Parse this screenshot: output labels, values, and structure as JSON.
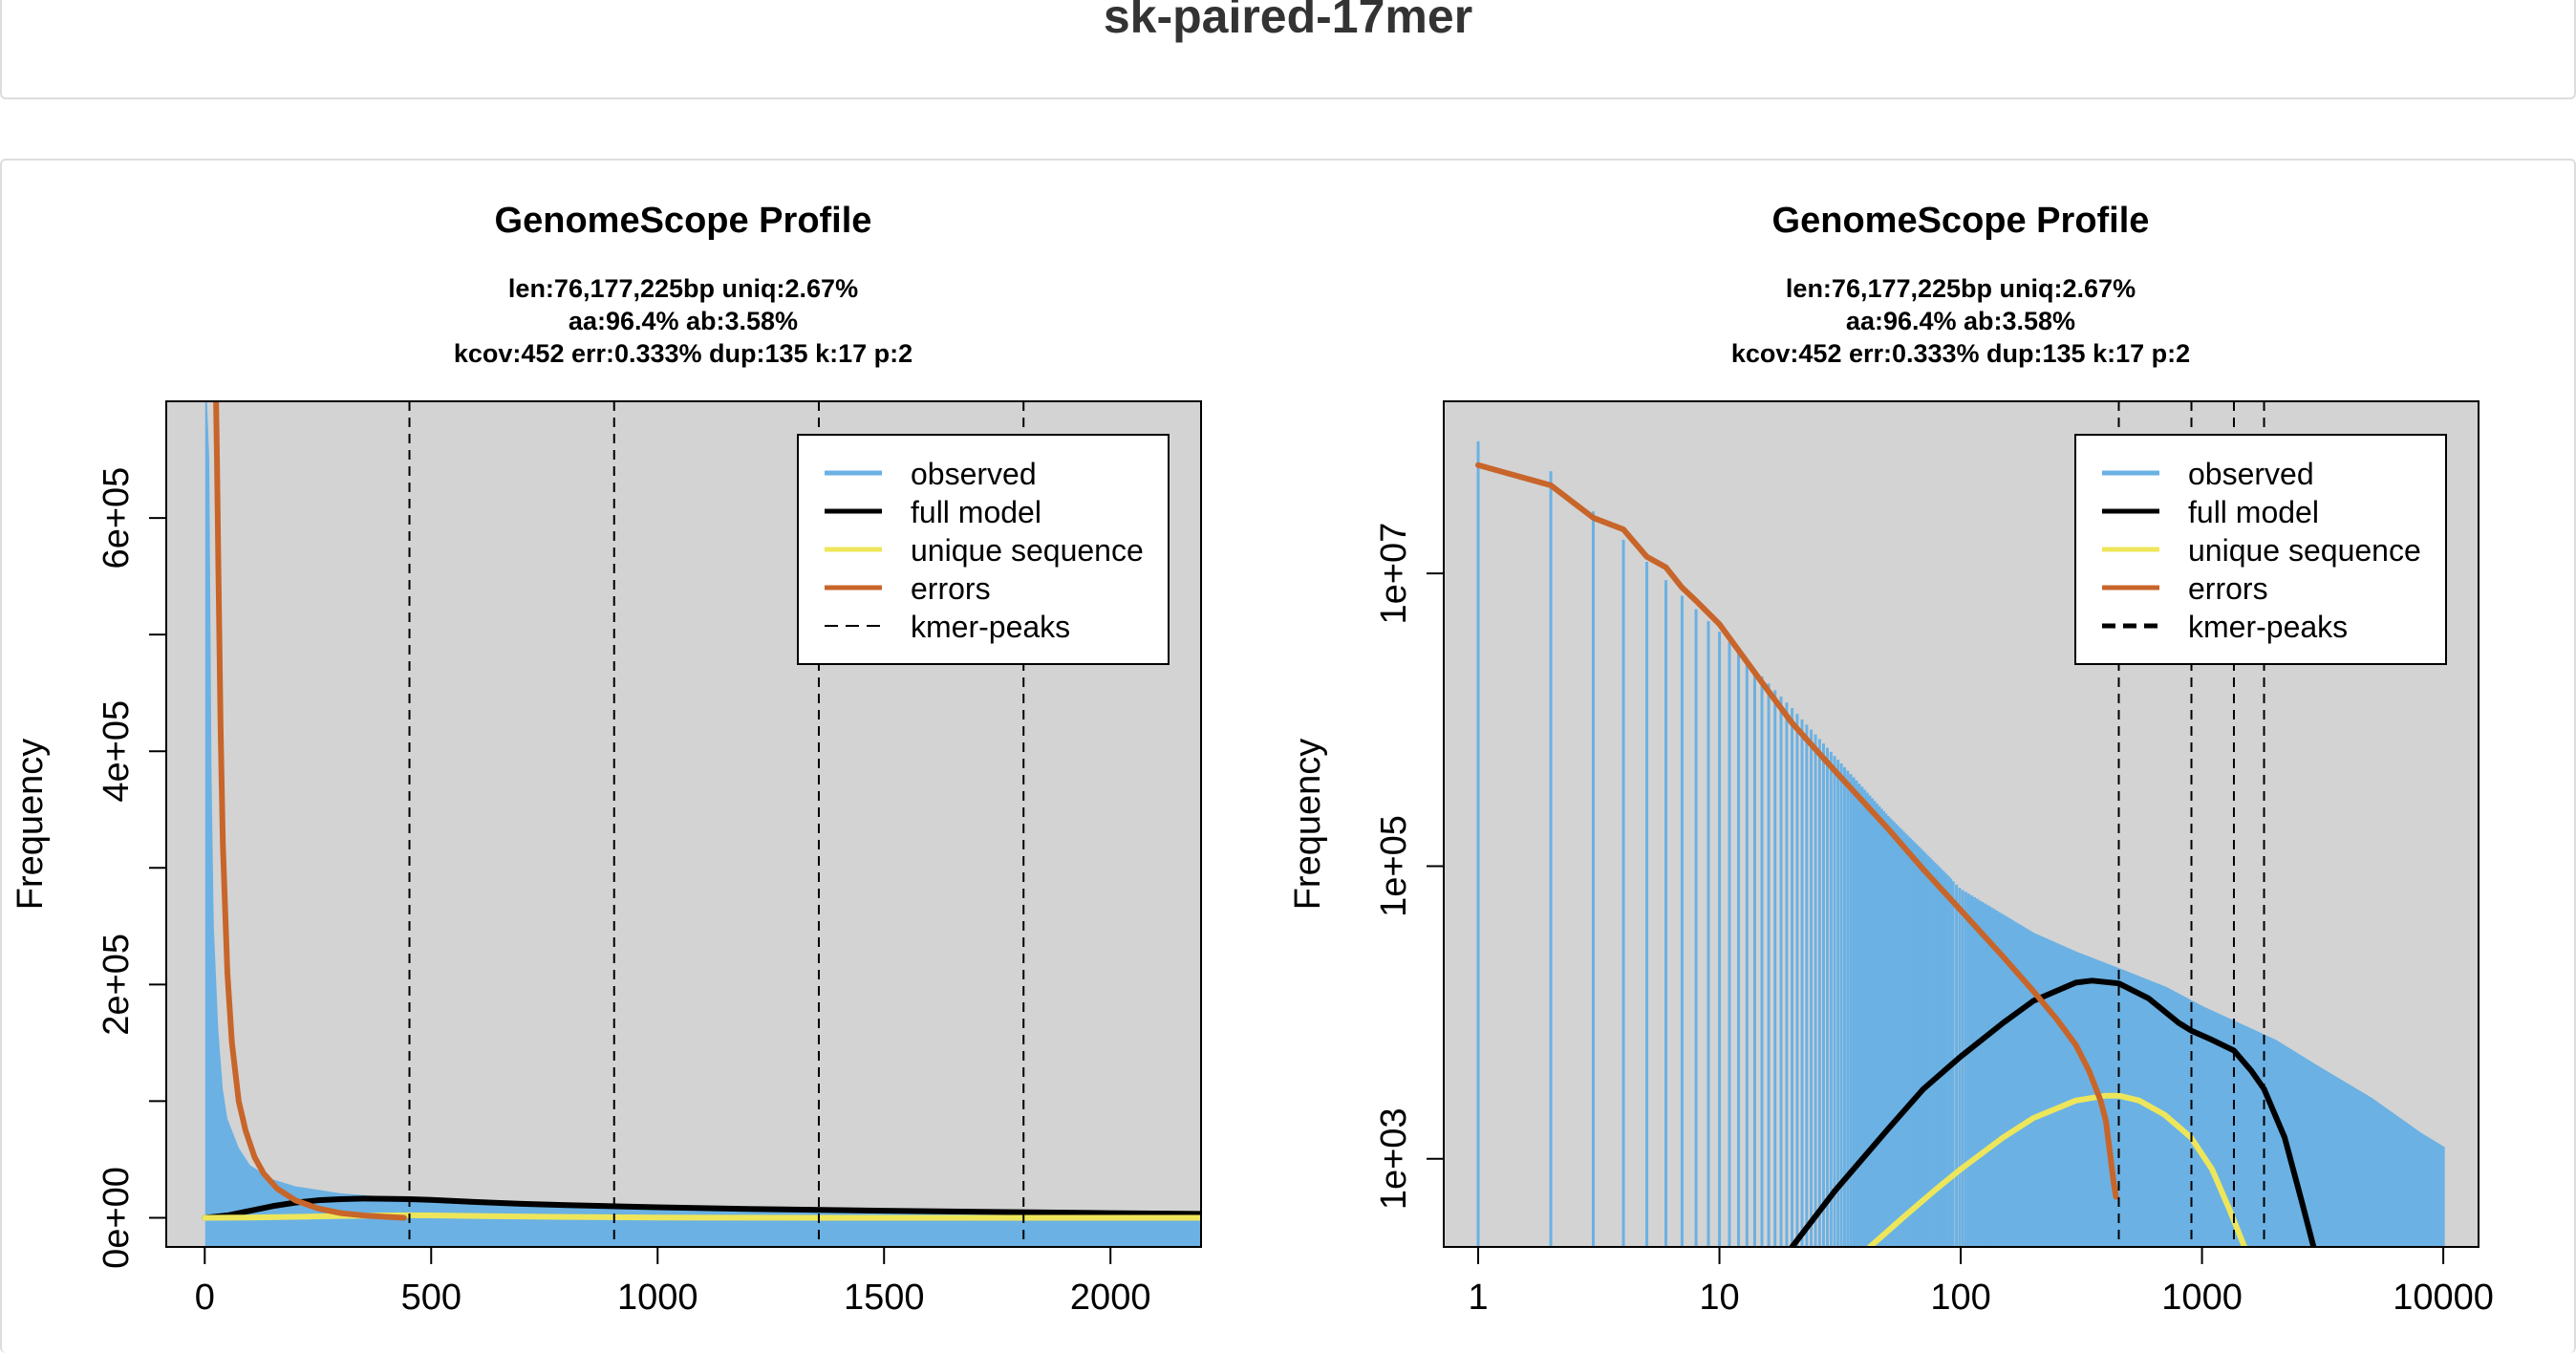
{
  "page": {
    "title": "sk-paired-17mer"
  },
  "colors": {
    "observed": "#6BB1E3",
    "full_model": "#000000",
    "unique_sequence": "#EEE65A",
    "errors": "#C8652A",
    "kmer_peaks": "#000000",
    "plot_bg": "#D3D3D3"
  },
  "chart_data": [
    {
      "type": "line",
      "title": "GenomeScope Profile",
      "subtitle": [
        "len:76,177,225bp uniq:2.67%",
        "aa:96.4% ab:3.58%",
        "kcov:452 err:0.333%  dup:135  k:17 p:2"
      ],
      "xlabel": "",
      "ylabel": "Frequency",
      "x_scale": "linear",
      "y_scale": "linear",
      "xlim": [
        -85,
        2200
      ],
      "ylim": [
        -25000,
        700000
      ],
      "x_ticks": [
        0,
        500,
        1000,
        1500,
        2000
      ],
      "x_tick_labels": [
        "0",
        "500",
        "1000",
        "1500",
        "2000"
      ],
      "y_ticks": [
        0,
        100000,
        200000,
        300000,
        400000,
        500000,
        600000
      ],
      "y_tick_labels": [
        "0e+00",
        "",
        "2e+05",
        "",
        "4e+05",
        "",
        "6e+05"
      ],
      "kmer_peaks": [
        452,
        904,
        1356,
        1808
      ],
      "legend": {
        "position": "top-right",
        "entries": [
          "observed",
          "full model",
          "unique sequence",
          "errors",
          "kmer-peaks"
        ]
      },
      "series": [
        {
          "name": "observed",
          "style": "area",
          "x": [
            1,
            5,
            10,
            15,
            20,
            30,
            40,
            50,
            75,
            100,
            150,
            200,
            300,
            400,
            500,
            700,
            1000,
            1500,
            2000,
            2200
          ],
          "y": [
            700000,
            700000,
            650000,
            380000,
            250000,
            160000,
            110000,
            85000,
            60000,
            45000,
            33000,
            27000,
            21000,
            18000,
            16000,
            13000,
            10000,
            7000,
            5000,
            4500
          ]
        },
        {
          "name": "full model",
          "x": [
            0,
            50,
            100,
            150,
            200,
            250,
            300,
            350,
            400,
            452,
            500,
            600,
            700,
            800,
            1000,
            1200,
            1500,
            1800,
            2000,
            2200
          ],
          "y": [
            0,
            2000,
            6000,
            10000,
            13000,
            15000,
            16000,
            16500,
            16300,
            16000,
            15300,
            13500,
            12000,
            10800,
            9000,
            7600,
            6000,
            4800,
            4000,
            3400
          ]
        },
        {
          "name": "unique sequence",
          "x": [
            0,
            100,
            200,
            300,
            400,
            452,
            500,
            600,
            800,
            1000,
            1200,
            1400,
            1600,
            2200
          ],
          "y": [
            0,
            200,
            800,
            1500,
            2000,
            2100,
            2000,
            1500,
            700,
            200,
            50,
            10,
            0,
            0
          ]
        },
        {
          "name": "errors",
          "x": [
            25,
            27,
            30,
            35,
            40,
            50,
            60,
            75,
            90,
            110,
            130,
            160,
            200,
            250,
            300,
            350,
            400,
            440
          ],
          "y": [
            700000,
            650000,
            560000,
            420000,
            320000,
            210000,
            150000,
            100000,
            75000,
            52000,
            38000,
            25000,
            15000,
            8000,
            4000,
            2000,
            800,
            0
          ]
        }
      ]
    },
    {
      "type": "line",
      "title": "GenomeScope Profile",
      "subtitle": [
        "len:76,177,225bp uniq:2.67%",
        "aa:96.4% ab:3.58%",
        "kcov:452 err:0.333%  dup:135  k:17 p:2"
      ],
      "xlabel": "",
      "ylabel": "Frequency",
      "x_scale": "log",
      "y_scale": "log",
      "xlim": [
        0.72,
        14000
      ],
      "ylim": [
        250,
        150000000
      ],
      "x_ticks": [
        1,
        10,
        100,
        1000,
        10000
      ],
      "x_tick_labels": [
        "1",
        "10",
        "100",
        "1000",
        "10000"
      ],
      "y_ticks": [
        1000,
        100000,
        10000000
      ],
      "y_tick_labels": [
        "1e+03",
        "1e+05",
        "1e+07"
      ],
      "kmer_peaks": [
        452,
        904,
        1356,
        1808
      ],
      "legend": {
        "position": "top-right",
        "entries": [
          "observed",
          "full model",
          "unique sequence",
          "errors",
          "kmer-peaks"
        ]
      },
      "series": [
        {
          "name": "observed",
          "style": "spikes",
          "x": [
            1,
            2,
            5,
            10,
            20,
            50,
            100,
            200,
            300,
            452,
            700,
            1000,
            2000,
            3000,
            5000,
            8000,
            10000
          ],
          "y": [
            80000000,
            50000000,
            12000000,
            4000000,
            1200000,
            220000,
            70000,
            35000,
            26000,
            20000,
            15000,
            11000,
            6500,
            4300,
            2600,
            1500,
            1200
          ]
        },
        {
          "name": "full model",
          "x": [
            20,
            30,
            50,
            70,
            100,
            150,
            200,
            300,
            350,
            452,
            600,
            800,
            904,
            1100,
            1356,
            1600,
            1808,
            2200,
            2600,
            2900
          ],
          "y": [
            250,
            600,
            1600,
            3000,
            5000,
            8500,
            12000,
            16000,
            16500,
            15800,
            12500,
            8500,
            7500,
            6500,
            5500,
            4000,
            3000,
            1400,
            500,
            250
          ]
        },
        {
          "name": "unique sequence",
          "x": [
            42,
            60,
            80,
            100,
            150,
            200,
            300,
            400,
            452,
            550,
            700,
            900,
            1100,
            1300,
            1500
          ],
          "y": [
            250,
            420,
            630,
            850,
            1400,
            1900,
            2500,
            2700,
            2700,
            2500,
            2000,
            1400,
            850,
            450,
            250
          ]
        },
        {
          "name": "errors",
          "x": [
            1,
            2,
            3,
            4,
            5,
            6,
            7,
            8,
            10,
            15,
            20,
            30,
            50,
            70,
            100,
            150,
            200,
            250,
            300,
            340,
            380,
            400,
            410,
            420,
            430,
            440
          ],
          "y": [
            55000000,
            40000000,
            24000000,
            20000000,
            13000000,
            11000000,
            8000000,
            6500000,
            4500000,
            1800000,
            950000,
            450000,
            180000,
            95000,
            50000,
            24000,
            14000,
            9000,
            6000,
            4000,
            2500,
            1800,
            1300,
            950,
            700,
            550
          ]
        }
      ]
    }
  ]
}
